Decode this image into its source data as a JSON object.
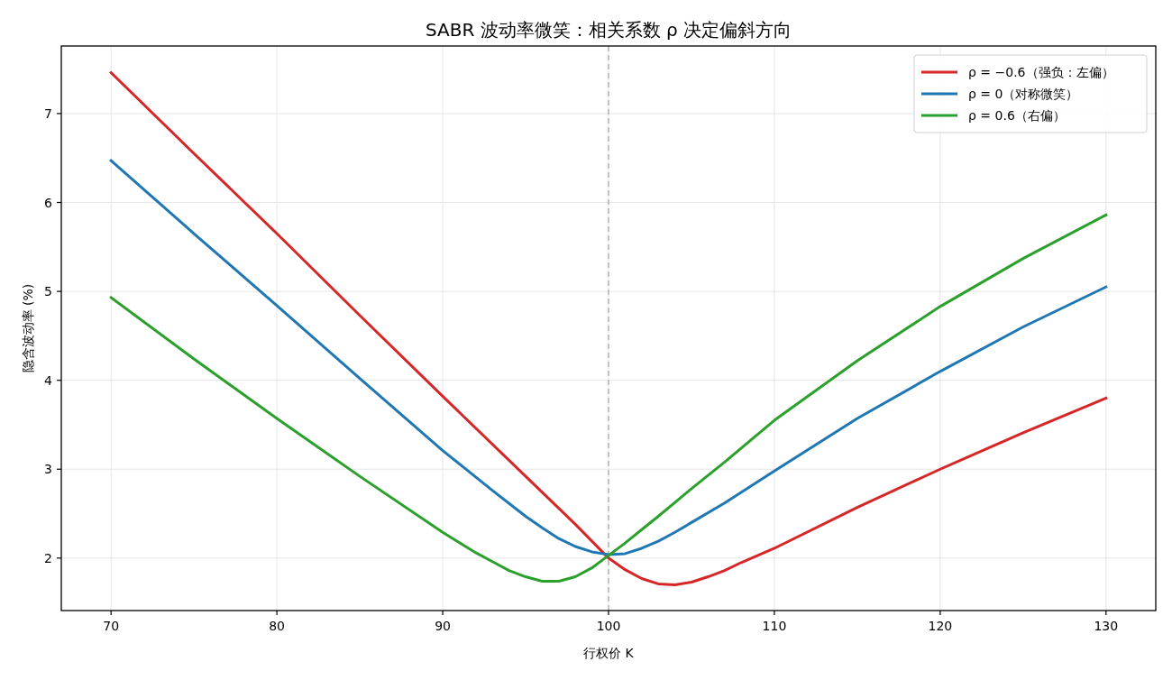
{
  "chart_data": {
    "type": "line",
    "title": "SABR 波动率微笑：相关系数 ρ 决定偏斜方向",
    "xlabel": "行权价 K",
    "ylabel": "隐含波动率 (%)",
    "xlim": [
      67,
      133
    ],
    "ylim": [
      1.41,
      7.76
    ],
    "xticks": [
      70,
      80,
      90,
      100,
      110,
      120,
      130
    ],
    "yticks": [
      2,
      3,
      4,
      5,
      6,
      7
    ],
    "grid": true,
    "legend": "top right",
    "line_style": "solid",
    "marker": "none",
    "ref_lines": [
      {
        "axis": "x",
        "value": 100,
        "color": "#aaaaaa",
        "line_style": "dashed"
      }
    ],
    "series": [
      {
        "name": "ρ = −0.6（强负：左偏）",
        "color": "#d62728",
        "x": [
          70,
          75,
          80,
          85,
          90,
          95,
          97,
          98,
          99,
          100,
          101,
          102,
          103,
          104,
          105,
          106,
          107,
          108,
          110,
          115,
          120,
          125,
          130
        ],
        "values": [
          7.46,
          6.55,
          5.65,
          4.73,
          3.82,
          2.92,
          2.56,
          2.38,
          2.19,
          2.0,
          1.87,
          1.77,
          1.71,
          1.7,
          1.73,
          1.79,
          1.86,
          1.95,
          2.11,
          2.57,
          3.0,
          3.41,
          3.8
        ]
      },
      {
        "name": "ρ = 0（对称微笑）",
        "color": "#1f77b4",
        "x": [
          70,
          75,
          80,
          85,
          90,
          93,
          95,
          96,
          97,
          98,
          99,
          100,
          101,
          102,
          103,
          104,
          105,
          107,
          110,
          115,
          120,
          125,
          130
        ],
        "values": [
          6.47,
          5.65,
          4.84,
          4.02,
          3.21,
          2.76,
          2.47,
          2.34,
          2.22,
          2.13,
          2.07,
          2.04,
          2.05,
          2.11,
          2.19,
          2.29,
          2.4,
          2.62,
          2.98,
          3.57,
          4.1,
          4.6,
          5.05
        ]
      },
      {
        "name": "ρ = 0.6（右偏）",
        "color": "#2ca02c",
        "x": [
          70,
          75,
          80,
          85,
          90,
          92,
          93,
          94,
          95,
          96,
          97,
          98,
          99,
          100,
          101,
          102,
          103,
          105,
          107,
          110,
          115,
          120,
          125,
          130
        ],
        "values": [
          4.93,
          4.24,
          3.57,
          2.92,
          2.29,
          2.06,
          1.96,
          1.86,
          1.79,
          1.74,
          1.74,
          1.79,
          1.89,
          2.03,
          2.17,
          2.32,
          2.47,
          2.78,
          3.08,
          3.55,
          4.22,
          4.83,
          5.37,
          5.86
        ]
      }
    ]
  }
}
